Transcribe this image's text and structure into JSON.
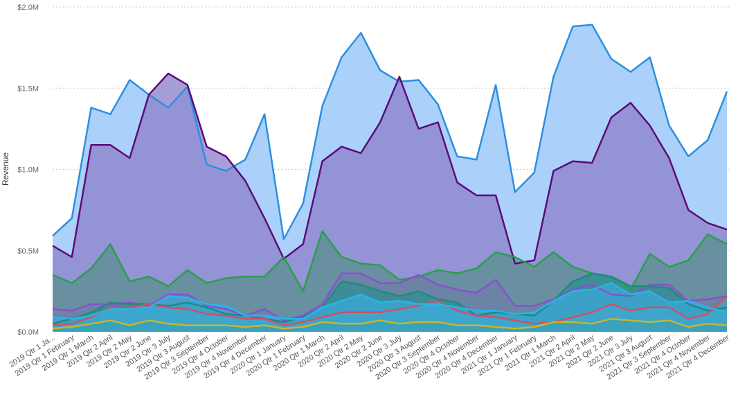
{
  "chart_data": {
    "type": "area",
    "title": "",
    "xlabel": "",
    "ylabel": "Revenue",
    "ylim": [
      0,
      2000000
    ],
    "yticks": [
      0,
      500000,
      1000000,
      1500000,
      2000000
    ],
    "ytick_labels": [
      "$0.0M",
      "$0.5M",
      "$1.0M",
      "$1.5M",
      "$2.0M"
    ],
    "grid": true,
    "legend": "none",
    "categories": [
      "2019 Qtr 1 January",
      "2019 Qtr 1 February",
      "2019 Qtr 1 March",
      "2019 Qtr 2 April",
      "2019 Qtr 2 May",
      "2019 Qtr 2 June",
      "2019 Qtr 3 July",
      "2019 Qtr 3 August",
      "2019 Qtr 3 September",
      "2019 Qtr 4 October",
      "2019 Qtr 4 November",
      "2019 Qtr 4 December",
      "2020 Qtr 1 January",
      "2020 Qtr 1 February",
      "2020 Qtr 1 March",
      "2020 Qtr 2 April",
      "2020 Qtr 2 May",
      "2020 Qtr 2 June",
      "2020 Qtr 3 July",
      "2020 Qtr 3 August",
      "2020 Qtr 3 September",
      "2020 Qtr 4 October",
      "2020 Qtr 4 November",
      "2020 Qtr 4 December",
      "2021 Qtr 1 January",
      "2021 Qtr 1 February",
      "2021 Qtr 1 March",
      "2021 Qtr 2 April",
      "2021 Qtr 2 May",
      "2021 Qtr 2 June",
      "2021 Qtr 3 July",
      "2021 Qtr 3 August",
      "2021 Qtr 3 September",
      "2021 Qtr 4 October",
      "2021 Qtr 4 November",
      "2021 Qtr 4 December"
    ],
    "category_labels": [
      "2019 Qtr 1 Ja...",
      "2019 Qtr 1 February",
      "2019 Qtr 1 March",
      "2019 Qtr 2 April",
      "2019 Qtr 2 May",
      "2019 Qtr 2 June",
      "2019 Qtr 3 July",
      "2019 Qtr 3 August",
      "2019 Qtr 3 September",
      "2019 Qtr 4 October",
      "2019 Qtr 4 November",
      "2019 Qtr 4 December",
      "2020 Qtr 1 January",
      "2020 Qtr 1 February",
      "2020 Qtr 1 March",
      "2020 Qtr 2 April",
      "2020 Qtr 2 May",
      "2020 Qtr 2 June",
      "2020 Qtr 3 July",
      "2020 Qtr 3 August",
      "2020 Qtr 3 September",
      "2020 Qtr 4 October",
      "2020 Qtr 4 November",
      "2020 Qtr 4 December",
      "2021 Qtr 1 January",
      "2021 Qtr 1 February",
      "2021 Qtr 1 March",
      "2021 Qtr 2 April",
      "2021 Qtr 2 May",
      "2021 Qtr 2 June",
      "2021 Qtr 3 July",
      "2021 Qtr 3 August",
      "2021 Qtr 3 September",
      "2021 Qtr 4 October",
      "2021 Qtr 4 November",
      "2021 Qtr 4 December"
    ],
    "series": [
      {
        "color": "#2b8fe0",
        "fill": "#a6cffa",
        "values": [
          590000,
          700000,
          1380000,
          1340000,
          1550000,
          1460000,
          1380000,
          1510000,
          1030000,
          990000,
          1060000,
          1340000,
          570000,
          790000,
          1390000,
          1690000,
          1840000,
          1610000,
          1540000,
          1550000,
          1400000,
          1080000,
          1060000,
          1520000,
          860000,
          980000,
          1570000,
          1880000,
          1890000,
          1680000,
          1600000,
          1690000,
          1270000,
          1080000,
          1180000,
          1480000
        ]
      },
      {
        "color": "#5c0a7a",
        "fill": "#8b7ec9",
        "values": [
          530000,
          460000,
          1150000,
          1150000,
          1070000,
          1460000,
          1590000,
          1520000,
          1140000,
          1080000,
          930000,
          700000,
          450000,
          540000,
          1050000,
          1140000,
          1100000,
          1290000,
          1570000,
          1250000,
          1290000,
          920000,
          840000,
          840000,
          420000,
          440000,
          990000,
          1050000,
          1040000,
          1320000,
          1410000,
          1270000,
          1070000,
          750000,
          670000,
          630000
        ]
      },
      {
        "color": "#28a04a",
        "fill": "#5a8f8f",
        "values": [
          350000,
          300000,
          390000,
          540000,
          310000,
          340000,
          280000,
          380000,
          300000,
          330000,
          340000,
          340000,
          460000,
          250000,
          620000,
          460000,
          420000,
          410000,
          320000,
          340000,
          380000,
          360000,
          390000,
          490000,
          460000,
          400000,
          490000,
          400000,
          360000,
          340000,
          260000,
          480000,
          400000,
          440000,
          600000,
          540000
        ]
      },
      {
        "color": "#8a4fd0",
        "fill": "#6e7fa8",
        "values": [
          140000,
          130000,
          170000,
          170000,
          180000,
          160000,
          230000,
          230000,
          160000,
          140000,
          100000,
          140000,
          70000,
          100000,
          170000,
          360000,
          360000,
          300000,
          300000,
          350000,
          290000,
          260000,
          240000,
          320000,
          160000,
          160000,
          200000,
          260000,
          290000,
          230000,
          220000,
          290000,
          290000,
          190000,
          200000,
          220000
        ]
      },
      {
        "color": "#1e8a80",
        "fill": "#2f8f92",
        "values": [
          50000,
          80000,
          120000,
          180000,
          170000,
          170000,
          160000,
          180000,
          150000,
          110000,
          100000,
          80000,
          60000,
          90000,
          150000,
          310000,
          290000,
          250000,
          220000,
          250000,
          200000,
          180000,
          100000,
          120000,
          110000,
          100000,
          190000,
          310000,
          360000,
          340000,
          280000,
          280000,
          270000,
          170000,
          130000,
          150000
        ]
      },
      {
        "color": "#d05068",
        "fill": "#4d9fb5",
        "values": [
          40000,
          50000,
          90000,
          150000,
          150000,
          170000,
          150000,
          140000,
          110000,
          100000,
          80000,
          80000,
          40000,
          60000,
          90000,
          120000,
          120000,
          120000,
          140000,
          160000,
          190000,
          130000,
          100000,
          90000,
          70000,
          50000,
          60000,
          90000,
          120000,
          170000,
          130000,
          150000,
          150000,
          80000,
          110000,
          220000
        ]
      },
      {
        "color": "#29b5e8",
        "fill": "#3ba8d6",
        "values": [
          90000,
          80000,
          100000,
          140000,
          140000,
          150000,
          220000,
          210000,
          170000,
          160000,
          100000,
          100000,
          80000,
          80000,
          150000,
          190000,
          230000,
          180000,
          190000,
          170000,
          170000,
          150000,
          130000,
          130000,
          110000,
          120000,
          190000,
          250000,
          260000,
          300000,
          230000,
          250000,
          180000,
          190000,
          150000,
          120000
        ]
      },
      {
        "color": "#c8b62c",
        "fill": "#3aa2b8",
        "values": [
          20000,
          30000,
          50000,
          70000,
          40000,
          70000,
          50000,
          40000,
          40000,
          40000,
          30000,
          40000,
          20000,
          30000,
          60000,
          50000,
          50000,
          70000,
          50000,
          60000,
          60000,
          40000,
          40000,
          30000,
          20000,
          30000,
          60000,
          60000,
          50000,
          80000,
          70000,
          60000,
          70000,
          30000,
          50000,
          40000
        ]
      }
    ]
  }
}
